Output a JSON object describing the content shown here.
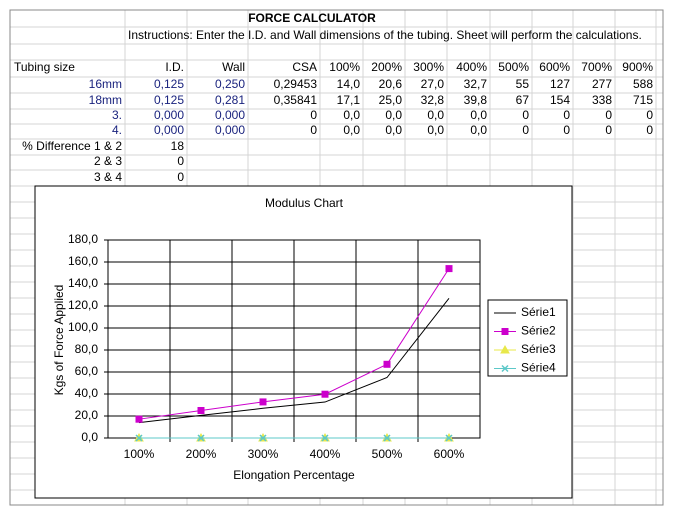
{
  "sheet": {
    "title": "FORCE CALCULATOR",
    "instructions": "Instructions:  Enter the I.D. and Wall dimensions of the tubing.  Sheet will perform the calculations.",
    "header": [
      "Tubing size",
      "I.D.",
      "Wall",
      "CSA",
      "100%",
      "200%",
      "300%",
      "400%",
      "500%",
      "600%",
      "700%",
      "900%"
    ],
    "rows": [
      [
        "16mm",
        "0,125",
        "0,250",
        "0,29453",
        "14,0",
        "20,6",
        "27,0",
        "32,7",
        "55",
        "127",
        "277",
        "588"
      ],
      [
        "18mm",
        "0,125",
        "0,281",
        "0,35841",
        "17,1",
        "25,0",
        "32,8",
        "39,8",
        "67",
        "154",
        "338",
        "715"
      ],
      [
        "3.",
        "0,000",
        "0,000",
        "0",
        "0,0",
        "0,0",
        "0,0",
        "0,0",
        "0",
        "0",
        "0",
        "0"
      ],
      [
        "4.",
        "0,000",
        "0,000",
        "0",
        "0,0",
        "0,0",
        "0,0",
        "0,0",
        "0",
        "0",
        "0",
        "0"
      ]
    ],
    "differences": [
      [
        "% Difference 1 & 2",
        "18"
      ],
      [
        "2 & 3",
        "0"
      ],
      [
        "3 & 4",
        "0"
      ]
    ]
  },
  "chart_data": {
    "type": "line",
    "title": "Modulus Chart",
    "x_label": "Elongation Percentage",
    "y_label": "Kgs of Force Applied",
    "categories": [
      "100%",
      "200%",
      "300%",
      "400%",
      "500%",
      "600%"
    ],
    "series": [
      {
        "name": "Série1",
        "color": "#000000",
        "marker": "none",
        "values": [
          14.0,
          20.6,
          27.0,
          32.7,
          55,
          127
        ]
      },
      {
        "name": "Série2",
        "color": "#cc00cc",
        "marker": "square",
        "values": [
          17.1,
          25.0,
          32.8,
          39.8,
          67,
          154
        ]
      },
      {
        "name": "Série3",
        "color": "#e8e84a",
        "marker": "triangle",
        "values": [
          0,
          0,
          0,
          0,
          0,
          0
        ]
      },
      {
        "name": "Série4",
        "color": "#5cc8c8",
        "marker": "x",
        "values": [
          0,
          0,
          0,
          0,
          0,
          0
        ]
      }
    ],
    "ylim": [
      0,
      180
    ],
    "yticks": [
      {
        "value": 0,
        "label": "0,0"
      },
      {
        "value": 20,
        "label": "20,0"
      },
      {
        "value": 40,
        "label": "40,0"
      },
      {
        "value": 60,
        "label": "60,0"
      },
      {
        "value": 80,
        "label": "80,0"
      },
      {
        "value": 100,
        "label": "100,0"
      },
      {
        "value": 120,
        "label": "120,0"
      },
      {
        "value": 140,
        "label": "140,0"
      },
      {
        "value": 160,
        "label": "160,0"
      },
      {
        "value": 180,
        "label": "180,0"
      }
    ],
    "grid": true,
    "legend": "right"
  }
}
